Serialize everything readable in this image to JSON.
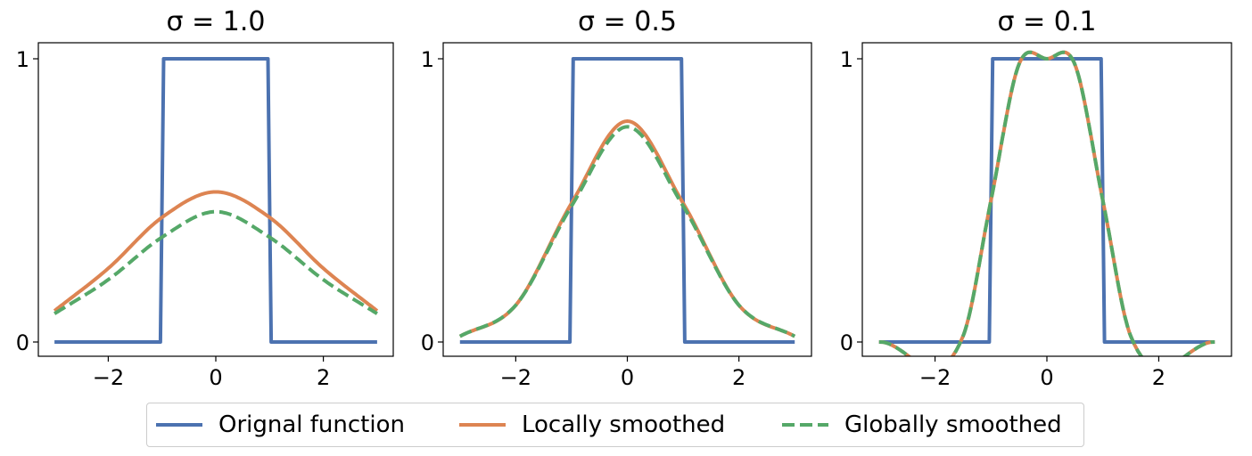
{
  "chart_data": [
    {
      "type": "line",
      "title": "σ = 1.0",
      "sigma": 1.0,
      "xlim": [
        -3,
        3
      ],
      "ylim": [
        0,
        1
      ],
      "x_ticks": [
        -2,
        0,
        2
      ],
      "y_ticks": [
        0,
        1
      ],
      "x_tick_labels": [
        "−2",
        "0",
        "2"
      ],
      "y_tick_labels": [
        "0",
        "1"
      ],
      "series": [
        {
          "name": "Orignal function",
          "color": "#4c72b0",
          "style": "solid",
          "x": [
            -3,
            -1,
            -1,
            1,
            1,
            3
          ],
          "y": [
            0,
            0,
            1,
            1,
            0,
            0
          ]
        },
        {
          "name": "Locally smoothed",
          "color": "#dd8452",
          "style": "solid",
          "x": [
            -3,
            -2,
            -1,
            0,
            1,
            2,
            3
          ],
          "y": [
            0.11,
            0.26,
            0.44,
            0.53,
            0.44,
            0.26,
            0.11
          ]
        },
        {
          "name": "Globally smoothed",
          "color": "#55a868",
          "style": "dashed",
          "x": [
            -3,
            -2,
            -1,
            0,
            1,
            2,
            3
          ],
          "y": [
            0.1,
            0.22,
            0.37,
            0.46,
            0.37,
            0.22,
            0.1
          ]
        }
      ]
    },
    {
      "type": "line",
      "title": "σ = 0.5",
      "sigma": 0.5,
      "xlim": [
        -3,
        3
      ],
      "ylim": [
        0,
        1
      ],
      "x_ticks": [
        -2,
        0,
        2
      ],
      "y_ticks": [
        0,
        1
      ],
      "x_tick_labels": [
        "−2",
        "0",
        "2"
      ],
      "y_tick_labels": [
        "0",
        "1"
      ],
      "series": [
        {
          "name": "Orignal function",
          "color": "#4c72b0",
          "style": "solid",
          "x": [
            -3,
            -1,
            -1,
            1,
            1,
            3
          ],
          "y": [
            0,
            0,
            1,
            1,
            0,
            0
          ]
        },
        {
          "name": "Locally smoothed",
          "color": "#dd8452",
          "style": "solid",
          "x": [
            -3,
            -2,
            -1,
            0,
            1,
            2,
            3
          ],
          "y": [
            0.02,
            0.13,
            0.49,
            0.78,
            0.49,
            0.13,
            0.02
          ]
        },
        {
          "name": "Globally smoothed",
          "color": "#55a868",
          "style": "dashed",
          "x": [
            -3,
            -2,
            -1,
            0,
            1,
            2,
            3
          ],
          "y": [
            0.02,
            0.13,
            0.48,
            0.76,
            0.48,
            0.13,
            0.02
          ]
        }
      ]
    },
    {
      "type": "line",
      "title": "σ = 0.1",
      "sigma": 0.1,
      "xlim": [
        -3,
        3
      ],
      "ylim": [
        0,
        1
      ],
      "x_ticks": [
        -2,
        0,
        2
      ],
      "y_ticks": [
        0,
        1
      ],
      "x_tick_labels": [
        "−2",
        "0",
        "2"
      ],
      "y_tick_labels": [
        "0",
        "1"
      ],
      "series": [
        {
          "name": "Orignal function",
          "color": "#4c72b0",
          "style": "solid",
          "x": [
            -3,
            -1,
            -1,
            1,
            1,
            3
          ],
          "y": [
            0,
            0,
            1,
            1,
            0,
            0
          ]
        },
        {
          "name": "Locally smoothed",
          "color": "#dd8452",
          "style": "solid",
          "x": [
            -3,
            -1.5,
            -1,
            -0.5,
            0,
            0.5,
            1,
            1.5,
            3
          ],
          "y": [
            0,
            0.02,
            0.5,
            0.98,
            1.0,
            0.98,
            0.5,
            0.02,
            0
          ]
        },
        {
          "name": "Globally smoothed",
          "color": "#55a868",
          "style": "dashed",
          "x": [
            -3,
            -1.5,
            -1,
            -0.5,
            0,
            0.5,
            1,
            1.5,
            3
          ],
          "y": [
            0,
            0.02,
            0.5,
            0.98,
            1.0,
            0.98,
            0.5,
            0.02,
            0
          ]
        }
      ]
    }
  ],
  "legend": {
    "placement": "bottom-center",
    "items": [
      {
        "label": "Orignal function",
        "color": "#4c72b0",
        "style": "solid"
      },
      {
        "label": "Locally smoothed",
        "color": "#dd8452",
        "style": "solid"
      },
      {
        "label": "Globally smoothed",
        "color": "#55a868",
        "style": "dashed"
      }
    ]
  }
}
